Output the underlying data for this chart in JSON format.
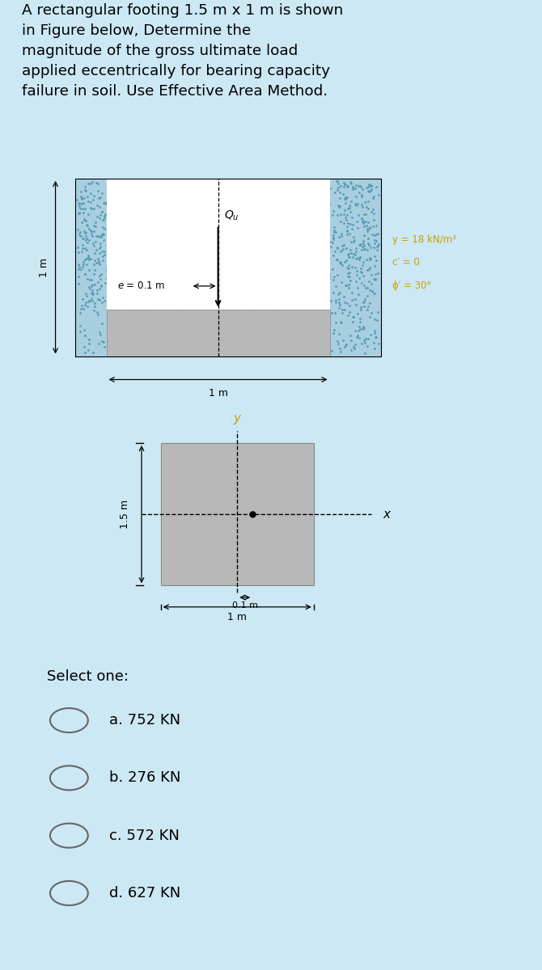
{
  "bg_color": "#cce8f4",
  "diagram_bg": "#ffffff",
  "soil_color": "#a8cfe0",
  "soil_dot_color": "#5a9ab5",
  "footing_color": "#b8b8b8",
  "props_color": "#c8a000",
  "title_text": "A rectangular footing 1.5 m x 1 m is shown\nin Figure below, Determine the\nmagnitude of the gross ultimate load\napplied eccentrically for bearing capacity\nfailure in soil. Use Effective Area Method.",
  "props_text": [
    "y = 18 kN/m³",
    "c′ = 0",
    "ϕ′ = 30°"
  ],
  "select_one": "Select one:",
  "options": [
    "a. 752 KN",
    "b. 276 KN",
    "c. 572 KN",
    "d. 627 KN"
  ]
}
